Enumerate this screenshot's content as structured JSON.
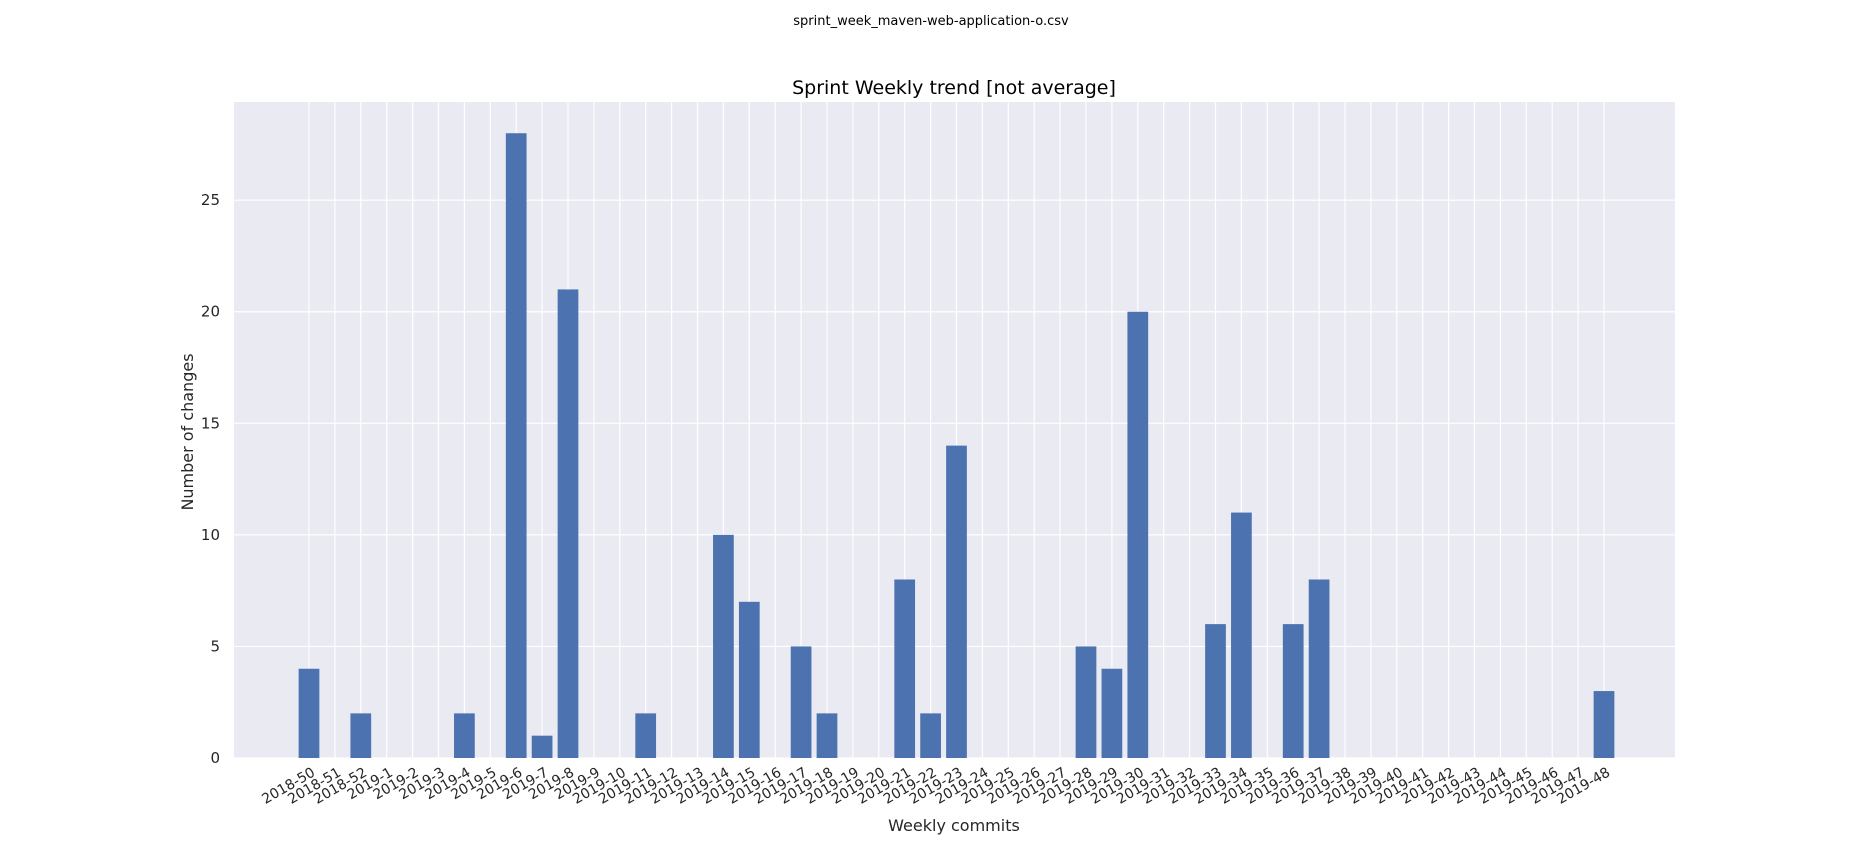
{
  "suptitle": "sprint_week_maven-web-application-o.csv",
  "colors": {
    "plot_bg": "#eaeaf2",
    "grid": "#ffffff",
    "bar": "#4c72b0",
    "text": "#262626"
  },
  "chart_data": {
    "type": "bar",
    "title": "Sprint Weekly trend [not average]",
    "xlabel": "Weekly commits",
    "ylabel": "Number of changes",
    "ylim": [
      0,
      29.4
    ],
    "yticks": [
      0,
      5,
      10,
      15,
      20,
      25
    ],
    "grid": true,
    "legend": "none",
    "categories": [
      "2018-50",
      "2018-51",
      "2018-52",
      "2019-1",
      "2019-2",
      "2019-3",
      "2019-4",
      "2019-5",
      "2019-6",
      "2019-7",
      "2019-8",
      "2019-9",
      "2019-10",
      "2019-11",
      "2019-12",
      "2019-13",
      "2019-14",
      "2019-15",
      "2019-16",
      "2019-17",
      "2019-18",
      "2019-19",
      "2019-20",
      "2019-21",
      "2019-22",
      "2019-23",
      "2019-24",
      "2019-25",
      "2019-26",
      "2019-27",
      "2019-28",
      "2019-29",
      "2019-30",
      "2019-31",
      "2019-32",
      "2019-33",
      "2019-34",
      "2019-35",
      "2019-36",
      "2019-37",
      "2019-38",
      "2019-39",
      "2019-40",
      "2019-41",
      "2019-42",
      "2019-43",
      "2019-44",
      "2019-45",
      "2019-46",
      "2019-47",
      "2019-48"
    ],
    "values": [
      4,
      0,
      2,
      0,
      0,
      0,
      2,
      0,
      28,
      1,
      21,
      0,
      0,
      2,
      0,
      0,
      10,
      7,
      0,
      5,
      2,
      0,
      0,
      8,
      2,
      14,
      0,
      0,
      0,
      0,
      5,
      4,
      20,
      0,
      0,
      6,
      11,
      0,
      6,
      8,
      0,
      0,
      0,
      0,
      0,
      0,
      0,
      0,
      0,
      0,
      3
    ]
  }
}
